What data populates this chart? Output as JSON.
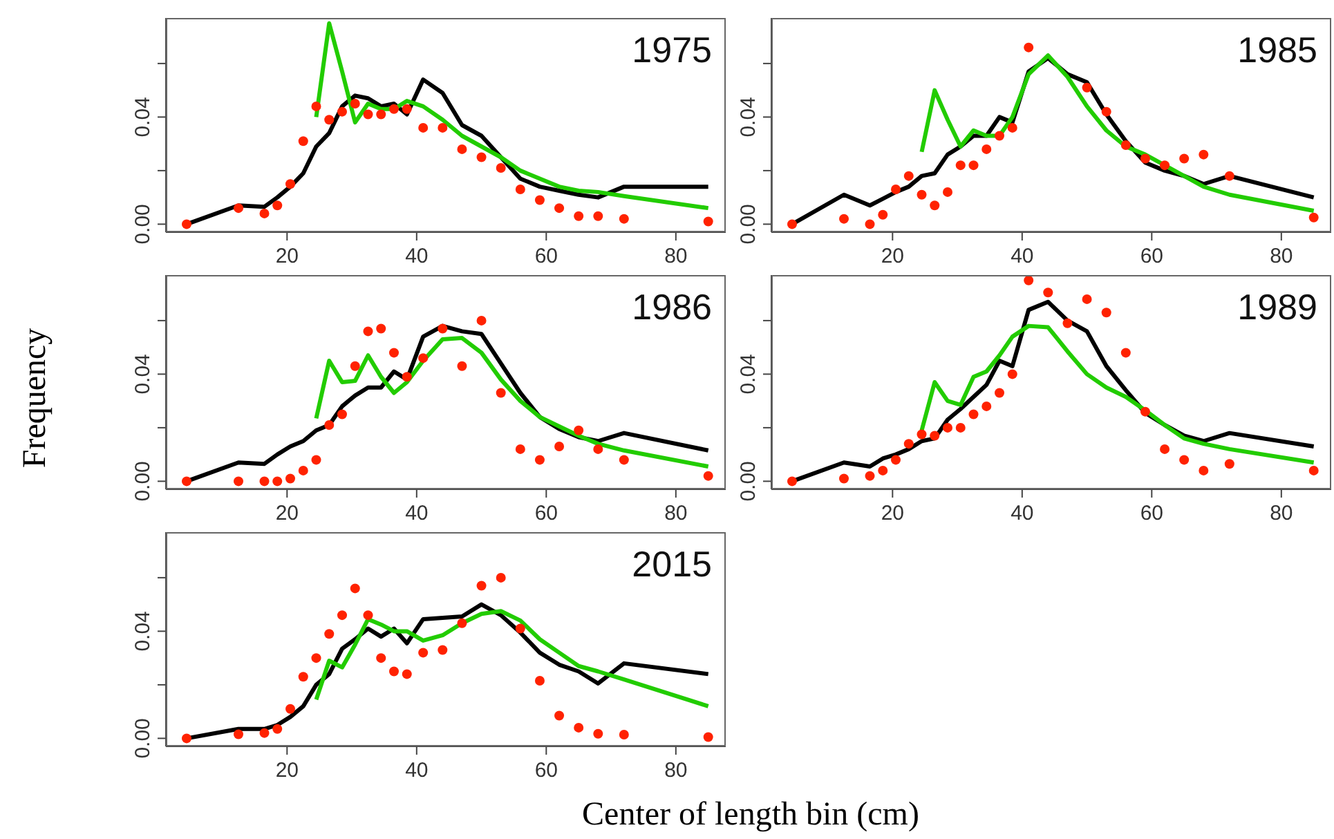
{
  "chart_data": [
    {
      "type": "line",
      "title": "1975",
      "x": [
        4.5,
        12.5,
        16.5,
        18.5,
        20.5,
        22.5,
        24.5,
        26.5,
        28.5,
        30.5,
        32.5,
        34.5,
        36.5,
        38.5,
        41,
        44,
        47,
        50,
        53,
        56,
        59,
        62,
        65,
        68,
        72,
        85
      ],
      "xlim": [
        1.3,
        87.7
      ],
      "ylim": [
        -0.003,
        0.077
      ],
      "xticks": [
        20,
        40,
        60,
        80
      ],
      "yticks": [
        {
          "value": 0,
          "label": "0.00"
        },
        {
          "value": 0.02,
          "label": null
        },
        {
          "value": 0.04,
          "label": "0.04"
        },
        {
          "value": 0.06,
          "label": null
        }
      ],
      "series": [
        {
          "type": "line",
          "color": "#000000",
          "marker": "none",
          "values": [
            0,
            0.007,
            0.0065,
            0.01,
            0.014,
            0.019,
            0.029,
            0.034,
            0.044,
            0.048,
            0.047,
            0.044,
            0.045,
            0.041,
            0.054,
            0.049,
            0.037,
            0.033,
            0.025,
            0.017,
            0.014,
            0.0125,
            0.011,
            0.01,
            0.014,
            0.014
          ]
        },
        {
          "type": "line",
          "color": "#22cc00",
          "marker": "none",
          "x": [
            24.5,
            26.5,
            28.5,
            30.5,
            32.5,
            34.5,
            36.5,
            38.5,
            41,
            44,
            47,
            50,
            53,
            56,
            59,
            62,
            65,
            68,
            72,
            85
          ],
          "values": [
            0.04,
            0.075,
            0.057,
            0.038,
            0.045,
            0.043,
            0.043,
            0.046,
            0.044,
            0.039,
            0.033,
            0.029,
            0.025,
            0.02,
            0.017,
            0.014,
            0.0125,
            0.012,
            0.0105,
            0.006
          ]
        },
        {
          "type": "scatter",
          "color": "#ff2200",
          "marker": "circle",
          "values": [
            0,
            0.006,
            0.004,
            0.007,
            0.015,
            0.031,
            0.044,
            0.039,
            0.042,
            0.045,
            0.041,
            0.041,
            0.043,
            0.043,
            0.036,
            0.036,
            0.028,
            0.025,
            0.021,
            0.013,
            0.009,
            0.006,
            0.003,
            0.003,
            0.002,
            0.001
          ]
        }
      ]
    },
    {
      "type": "line",
      "title": "1985",
      "x": [
        4.5,
        12.5,
        16.5,
        18.5,
        20.5,
        22.5,
        24.5,
        26.5,
        28.5,
        30.5,
        32.5,
        34.5,
        36.5,
        38.5,
        41,
        44,
        47,
        50,
        53,
        56,
        59,
        62,
        65,
        68,
        72,
        85
      ],
      "xlim": [
        1.3,
        87.7
      ],
      "ylim": [
        -0.003,
        0.077
      ],
      "xticks": [
        20,
        40,
        60,
        80
      ],
      "yticks": [
        {
          "value": 0,
          "label": "0.00"
        },
        {
          "value": 0.02,
          "label": null
        },
        {
          "value": 0.04,
          "label": "0.04"
        },
        {
          "value": 0.06,
          "label": null
        }
      ],
      "series": [
        {
          "type": "line",
          "color": "#000000",
          "marker": "none",
          "values": [
            0,
            0.011,
            0.007,
            0.0095,
            0.012,
            0.014,
            0.018,
            0.019,
            0.026,
            0.029,
            0.033,
            0.033,
            0.04,
            0.038,
            0.057,
            0.062,
            0.056,
            0.053,
            0.041,
            0.031,
            0.023,
            0.02,
            0.018,
            0.015,
            0.018,
            0.01
          ]
        },
        {
          "type": "line",
          "color": "#22cc00",
          "marker": "none",
          "x": [
            24.5,
            26.5,
            28.5,
            30.5,
            32.5,
            34.5,
            36.5,
            38.5,
            41,
            44,
            47,
            50,
            53,
            56,
            59,
            62,
            65,
            68,
            72,
            85
          ],
          "values": [
            0.027,
            0.05,
            0.039,
            0.029,
            0.035,
            0.033,
            0.033,
            0.04,
            0.056,
            0.063,
            0.055,
            0.044,
            0.035,
            0.029,
            0.026,
            0.022,
            0.018,
            0.014,
            0.011,
            0.005
          ]
        },
        {
          "type": "scatter",
          "color": "#ff2200",
          "marker": "circle",
          "values": [
            0,
            0.002,
            0,
            0.0035,
            0.013,
            0.018,
            0.011,
            0.007,
            0.012,
            0.022,
            0.022,
            0.028,
            0.033,
            0.036,
            0.066,
            null,
            null,
            0.051,
            0.042,
            0.0295,
            0.0245,
            0.022,
            0.0245,
            0.026,
            0.018,
            0.0025
          ]
        }
      ]
    },
    {
      "type": "line",
      "title": "1986",
      "ylabel": "Frequency",
      "x": [
        4.5,
        12.5,
        16.5,
        18.5,
        20.5,
        22.5,
        24.5,
        26.5,
        28.5,
        30.5,
        32.5,
        34.5,
        36.5,
        38.5,
        41,
        44,
        47,
        50,
        53,
        56,
        59,
        62,
        65,
        68,
        72,
        85
      ],
      "xlim": [
        1.3,
        87.7
      ],
      "ylim": [
        -0.003,
        0.077
      ],
      "xticks": [
        20,
        40,
        60,
        80
      ],
      "yticks": [
        {
          "value": 0,
          "label": "0.00"
        },
        {
          "value": 0.02,
          "label": null
        },
        {
          "value": 0.04,
          "label": "0.04"
        },
        {
          "value": 0.06,
          "label": null
        }
      ],
      "series": [
        {
          "type": "line",
          "color": "#000000",
          "marker": "none",
          "values": [
            0,
            0.007,
            0.0065,
            0.01,
            0.013,
            0.015,
            0.019,
            0.021,
            0.028,
            0.032,
            0.035,
            0.035,
            0.041,
            0.038,
            0.054,
            0.058,
            0.056,
            0.055,
            0.044,
            0.033,
            0.024,
            0.0195,
            0.0165,
            0.015,
            0.018,
            0.0115
          ]
        },
        {
          "type": "line",
          "color": "#22cc00",
          "marker": "none",
          "x": [
            24.5,
            26.5,
            28.5,
            30.5,
            32.5,
            34.5,
            36.5,
            38.5,
            41,
            44,
            47,
            50,
            53,
            56,
            59,
            62,
            65,
            68,
            72,
            85
          ],
          "values": [
            0.0235,
            0.045,
            0.037,
            0.0375,
            0.047,
            0.039,
            0.033,
            0.037,
            0.045,
            0.053,
            0.0535,
            0.048,
            0.038,
            0.03,
            0.024,
            0.0205,
            0.017,
            0.014,
            0.0115,
            0.0055
          ]
        },
        {
          "type": "scatter",
          "color": "#ff2200",
          "marker": "circle",
          "values": [
            0,
            0,
            0,
            0,
            0.001,
            0.004,
            0.008,
            0.021,
            0.025,
            0.043,
            0.056,
            0.057,
            0.048,
            0.039,
            0.046,
            0.057,
            0.043,
            0.06,
            0.033,
            0.012,
            0.008,
            0.013,
            0.019,
            0.012,
            0.008,
            0.002
          ]
        }
      ]
    },
    {
      "type": "line",
      "title": "1989",
      "x": [
        4.5,
        12.5,
        16.5,
        18.5,
        20.5,
        22.5,
        24.5,
        26.5,
        28.5,
        30.5,
        32.5,
        34.5,
        36.5,
        38.5,
        41,
        44,
        47,
        50,
        53,
        56,
        59,
        62,
        65,
        68,
        72,
        85
      ],
      "xlim": [
        1.3,
        87.7
      ],
      "ylim": [
        -0.003,
        0.077
      ],
      "xticks": [
        20,
        40,
        60,
        80
      ],
      "yticks": [
        {
          "value": 0,
          "label": "0.00"
        },
        {
          "value": 0.02,
          "label": null
        },
        {
          "value": 0.04,
          "label": "0.04"
        },
        {
          "value": 0.06,
          "label": null
        }
      ],
      "series": [
        {
          "type": "line",
          "color": "#000000",
          "marker": "none",
          "values": [
            0,
            0.007,
            0.0055,
            0.0085,
            0.01,
            0.012,
            0.015,
            0.016,
            0.023,
            0.027,
            0.0315,
            0.036,
            0.045,
            0.043,
            0.064,
            0.067,
            0.06,
            0.056,
            0.043,
            0.034,
            0.0255,
            0.021,
            0.017,
            0.015,
            0.018,
            0.013
          ]
        },
        {
          "type": "line",
          "color": "#22cc00",
          "marker": "none",
          "x": [
            24.5,
            26.5,
            28.5,
            30.5,
            32.5,
            34.5,
            36.5,
            38.5,
            41,
            44,
            47,
            50,
            53,
            56,
            59,
            62,
            65,
            68,
            72,
            85
          ],
          "values": [
            0.019,
            0.037,
            0.03,
            0.0285,
            0.039,
            0.041,
            0.047,
            0.054,
            0.058,
            0.0575,
            0.0485,
            0.04,
            0.035,
            0.0315,
            0.0265,
            0.021,
            0.016,
            0.014,
            0.012,
            0.007
          ]
        },
        {
          "type": "scatter",
          "color": "#ff2200",
          "marker": "circle",
          "values": [
            0,
            0.001,
            0.002,
            0.004,
            0.008,
            0.014,
            0.0175,
            0.017,
            0.02,
            0.02,
            0.025,
            0.028,
            0.033,
            0.04,
            0.075,
            0.0705,
            0.059,
            0.068,
            0.063,
            0.048,
            0.026,
            0.012,
            0.008,
            0.004,
            0.0065,
            0.004
          ]
        }
      ]
    },
    {
      "type": "line",
      "title": "2015",
      "xlabel": "Center of length bin (cm)",
      "x": [
        4.5,
        12.5,
        16.5,
        18.5,
        20.5,
        22.5,
        24.5,
        26.5,
        28.5,
        30.5,
        32.5,
        34.5,
        36.5,
        38.5,
        41,
        44,
        47,
        50,
        53,
        56,
        59,
        62,
        65,
        68,
        72,
        85
      ],
      "xlim": [
        1.3,
        87.7
      ],
      "ylim": [
        -0.003,
        0.077
      ],
      "xticks": [
        20,
        40,
        60,
        80
      ],
      "yticks": [
        {
          "value": 0,
          "label": "0.00"
        },
        {
          "value": 0.02,
          "label": null
        },
        {
          "value": 0.04,
          "label": "0.04"
        },
        {
          "value": 0.06,
          "label": null
        }
      ],
      "series": [
        {
          "type": "line",
          "color": "#000000",
          "marker": "none",
          "values": [
            0,
            0.0035,
            0.0035,
            0.005,
            0.008,
            0.012,
            0.02,
            0.024,
            0.0335,
            0.037,
            0.041,
            0.038,
            0.041,
            0.0355,
            0.0445,
            0.045,
            0.0455,
            0.05,
            0.046,
            0.0395,
            0.032,
            0.0275,
            0.025,
            0.0205,
            0.028,
            0.024
          ]
        },
        {
          "type": "line",
          "color": "#22cc00",
          "marker": "none",
          "x": [
            24.5,
            26.5,
            28.5,
            30.5,
            32.5,
            34.5,
            36.5,
            38.5,
            41,
            44,
            47,
            50,
            53,
            56,
            59,
            62,
            65,
            68,
            72,
            85
          ],
          "values": [
            0.0145,
            0.029,
            0.0265,
            0.035,
            0.0445,
            0.0425,
            0.04,
            0.04,
            0.0365,
            0.0385,
            0.043,
            0.0465,
            0.0475,
            0.044,
            0.037,
            0.032,
            0.027,
            0.025,
            0.022,
            0.012
          ]
        },
        {
          "type": "scatter",
          "color": "#ff2200",
          "marker": "circle",
          "values": [
            0,
            0.0015,
            0.002,
            0.0035,
            0.011,
            0.023,
            0.03,
            0.039,
            0.046,
            0.056,
            0.046,
            0.03,
            0.025,
            0.024,
            0.032,
            0.033,
            0.043,
            0.057,
            0.06,
            0.041,
            0.0215,
            0.0085,
            0.004,
            0.0017,
            0.0014,
            0.0005
          ]
        }
      ]
    }
  ]
}
